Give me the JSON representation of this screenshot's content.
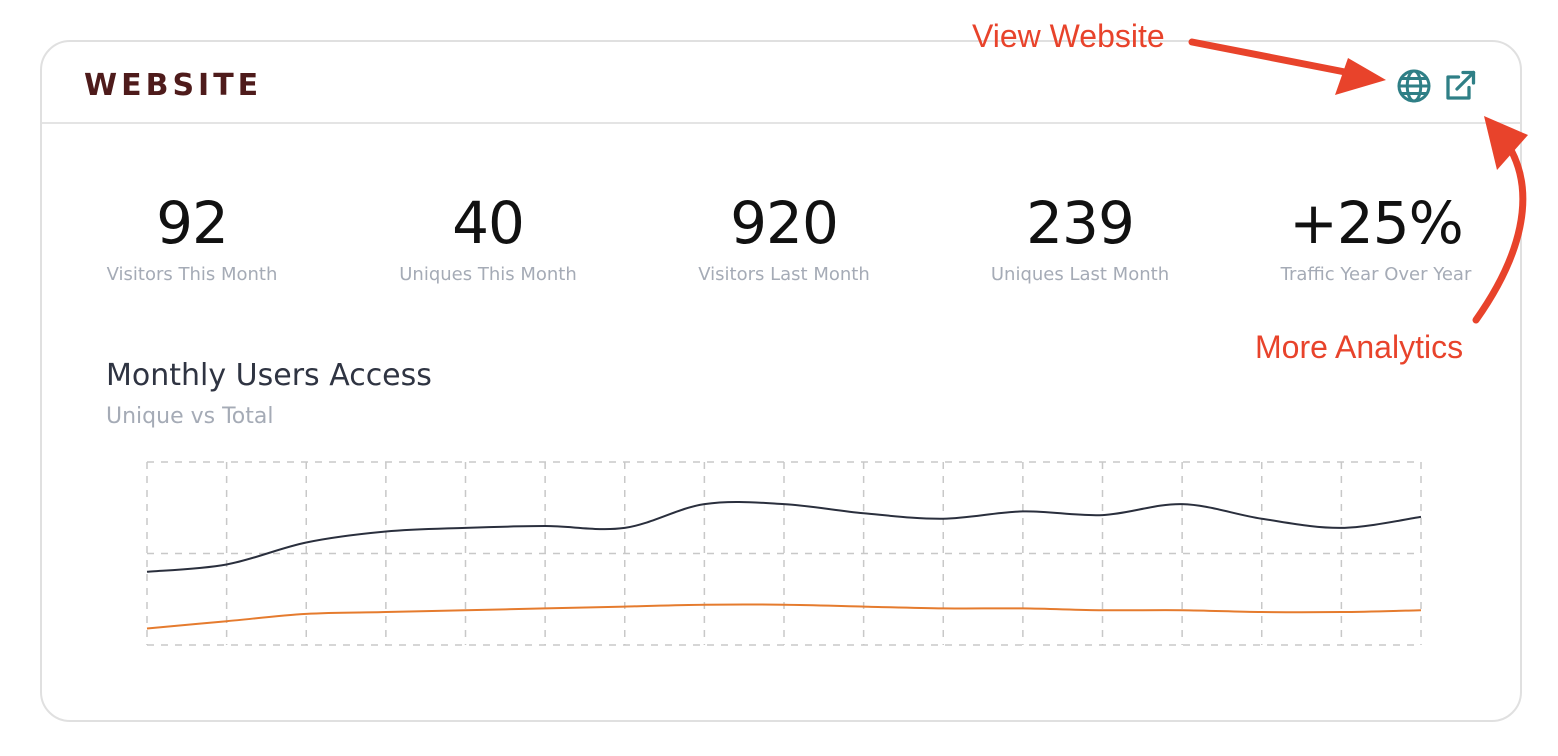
{
  "card": {
    "title": "WEBSITE",
    "icons": {
      "view_website": "globe-icon",
      "more_analytics": "external-link-icon",
      "color": "#2f7f86"
    }
  },
  "stats": [
    {
      "value": "92",
      "label": "Visitors This Month"
    },
    {
      "value": "40",
      "label": "Uniques This Month"
    },
    {
      "value": "920",
      "label": "Visitors Last Month"
    },
    {
      "value": "239",
      "label": "Uniques Last Month"
    },
    {
      "value": "+25%",
      "label": "Traffic Year Over Year"
    }
  ],
  "chart": {
    "title": "Monthly Users Access",
    "subtitle": "Unique vs Total"
  },
  "chart_data": {
    "type": "line",
    "title": "Monthly Users Access",
    "subtitle": "Unique vs Total",
    "x": [
      0,
      1,
      2,
      3,
      4,
      5,
      6,
      7,
      8,
      9,
      10,
      11,
      12,
      13,
      14,
      15,
      16
    ],
    "series": [
      {
        "name": "",
        "color": "#2a2f3d",
        "values": [
          40,
          44,
          56,
          62,
          64,
          65,
          64,
          77,
          77,
          72,
          69,
          73,
          71,
          77,
          69,
          64,
          70
        ]
      },
      {
        "name": "",
        "color": "#e57b2e",
        "values": [
          9,
          13,
          17,
          18,
          19,
          20,
          21,
          22,
          22,
          21,
          20,
          20,
          19,
          19,
          18,
          18,
          19
        ]
      }
    ],
    "ylim": [
      0,
      100
    ],
    "grid": true,
    "xlabel": "",
    "ylabel": ""
  },
  "annotations": {
    "view_website": "View Website",
    "more_analytics": "More Analytics",
    "color": "#e8432b"
  }
}
